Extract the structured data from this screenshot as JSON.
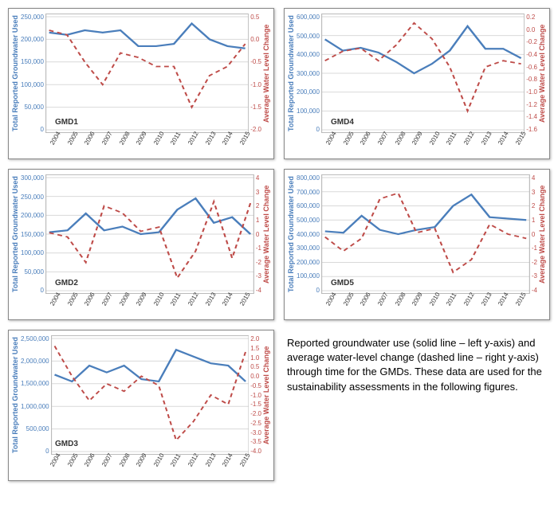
{
  "global": {
    "y_left_label": "Total Reported Groundwater Used",
    "y_right_label": "Average Water Level Change",
    "x_categories": [
      "2004",
      "2005",
      "2006",
      "2007",
      "2008",
      "2009",
      "2010",
      "2011",
      "2012",
      "2013",
      "2014",
      "2015"
    ],
    "colors": {
      "solid": "#4a7ebb",
      "dashed": "#be4b48",
      "grid": "#d9d9d9",
      "border": "#888888",
      "bg": "#ffffff"
    },
    "line_width_solid": 2.2,
    "line_width_dashed": 1.8,
    "dash_pattern": "5,4"
  },
  "caption": "Reported groundwater use (solid line – left y-axis) and average water-level change (dashed line – right y-axis) through time for the GMDs.  These data are used for the sustainability assessments in the following figures.",
  "charts": [
    {
      "id": "GMD1",
      "left_ylim": [
        0,
        250000
      ],
      "left_step": 50000,
      "right_ylim": [
        -2.0,
        0.5
      ],
      "right_step": 0.5,
      "left_values": [
        215000,
        210000,
        220000,
        215000,
        220000,
        185000,
        185000,
        190000,
        235000,
        200000,
        185000,
        180000
      ],
      "right_values": [
        0.2,
        0.1,
        -0.5,
        -1.0,
        -0.3,
        -0.4,
        -0.6,
        -0.6,
        -1.5,
        -0.8,
        -0.6,
        -0.1
      ]
    },
    {
      "id": "GMD4",
      "left_ylim": [
        0,
        600000
      ],
      "left_step": 100000,
      "right_ylim": [
        -1.6,
        0.2
      ],
      "right_step": 0.2,
      "left_values": [
        480000,
        420000,
        435000,
        410000,
        360000,
        300000,
        350000,
        420000,
        550000,
        430000,
        430000,
        380000
      ],
      "right_values": [
        -0.5,
        -0.35,
        -0.3,
        -0.5,
        -0.25,
        0.1,
        -0.15,
        -0.6,
        -1.3,
        -0.6,
        -0.5,
        -0.55
      ]
    },
    {
      "id": "GMD2",
      "left_ylim": [
        0,
        300000
      ],
      "left_step": 50000,
      "right_ylim": [
        -4.0,
        4.0
      ],
      "right_step": 1.0,
      "left_values": [
        155000,
        160000,
        205000,
        160000,
        170000,
        150000,
        155000,
        215000,
        245000,
        180000,
        195000,
        150000
      ],
      "right_values": [
        0.1,
        -0.2,
        -2.0,
        2.0,
        1.5,
        0.2,
        0.5,
        -3.1,
        -1.2,
        2.3,
        -1.7,
        2.2
      ]
    },
    {
      "id": "GMD5",
      "left_ylim": [
        0,
        800000
      ],
      "left_step": 100000,
      "right_ylim": [
        -4.0,
        4.0
      ],
      "right_step": 1.0,
      "left_values": [
        420000,
        410000,
        530000,
        430000,
        400000,
        430000,
        450000,
        600000,
        680000,
        520000,
        510000,
        500000
      ],
      "right_values": [
        -0.2,
        -1.2,
        -0.3,
        2.5,
        2.9,
        0.1,
        0.4,
        -2.7,
        -1.8,
        0.7,
        0.0,
        -0.3
      ]
    },
    {
      "id": "GMD3",
      "left_ylim": [
        0,
        2500000
      ],
      "left_step": 500000,
      "right_ylim": [
        -4.0,
        2.0
      ],
      "right_step": 0.5,
      "left_values": [
        1700000,
        1550000,
        1900000,
        1750000,
        1900000,
        1600000,
        1550000,
        2250000,
        2100000,
        1950000,
        1900000,
        1550000
      ],
      "right_values": [
        1.6,
        0.0,
        -1.3,
        -0.4,
        -0.8,
        0.0,
        -0.5,
        -3.4,
        -2.4,
        -1.0,
        -1.5,
        1.3
      ]
    }
  ]
}
